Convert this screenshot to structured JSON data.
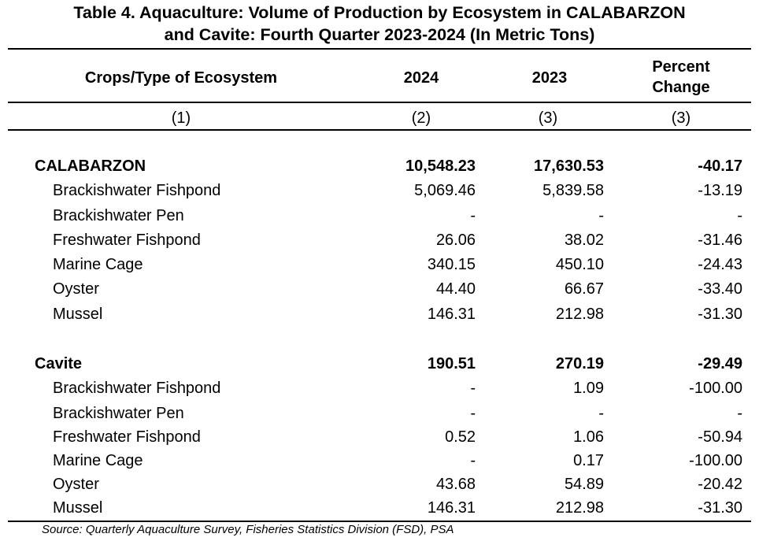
{
  "table": {
    "title_line1": "Table 4. Aquaculture: Volume of Production by Ecosystem in CALABARZON",
    "title_line2": "and Cavite: Fourth Quarter 2023-2024 (In Metric Tons)",
    "headers": {
      "col1": "Crops/Type of Ecosystem",
      "col2": "2024",
      "col3": "2023",
      "col4_line1": "Percent",
      "col4_line2": "Change"
    },
    "col_numbers": [
      "(1)",
      "(2)",
      "(3)",
      "(3)"
    ],
    "sections": [
      {
        "name": "CALABARZON",
        "v2024": "10,548.23",
        "v2023": "17,630.53",
        "change": "-40.17",
        "rows": [
          {
            "name": "Brackishwater Fishpond",
            "v2024": "5,069.46",
            "v2023": "5,839.58",
            "change": "-13.19"
          },
          {
            "name": "Brackishwater Pen",
            "v2024": "-",
            "v2023": "-",
            "change": "-"
          },
          {
            "name": "Freshwater Fishpond",
            "v2024": "26.06",
            "v2023": "38.02",
            "change": "-31.46"
          },
          {
            "name": "Marine Cage",
            "v2024": "340.15",
            "v2023": "450.10",
            "change": "-24.43"
          },
          {
            "name": "Oyster",
            "v2024": "44.40",
            "v2023": "66.67",
            "change": "-33.40"
          },
          {
            "name": "Mussel",
            "v2024": "146.31",
            "v2023": "212.98",
            "change": "-31.30"
          }
        ]
      },
      {
        "name": "Cavite",
        "v2024": "190.51",
        "v2023": "270.19",
        "change": "-29.49",
        "rows": [
          {
            "name": "Brackishwater Fishpond",
            "v2024": "-",
            "v2023": "1.09",
            "change": "-100.00"
          },
          {
            "name": "Brackishwater Pen",
            "v2024": "-",
            "v2023": "-",
            "change": "-"
          },
          {
            "name": "Freshwater Fishpond",
            "v2024": "0.52",
            "v2023": "1.06",
            "change": "-50.94"
          },
          {
            "name": "Marine Cage",
            "v2024": "-",
            "v2023": "0.17",
            "change": "-100.00"
          },
          {
            "name": "Oyster",
            "v2024": "43.68",
            "v2023": "54.89",
            "change": "-20.42"
          },
          {
            "name": "Mussel",
            "v2024": "146.31",
            "v2023": "212.98",
            "change": "-31.30"
          }
        ]
      }
    ],
    "source": "Source: Quarterly Aquaculture Survey, Fisheries Statistics Division (FSD), PSA"
  }
}
